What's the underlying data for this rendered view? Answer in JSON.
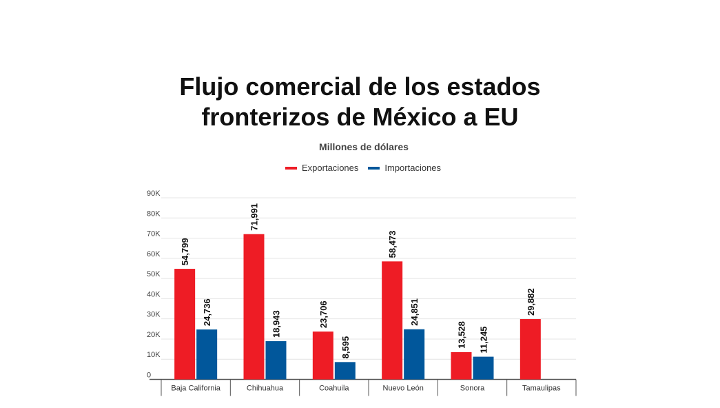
{
  "chart_data": {
    "type": "bar",
    "title": "Flujo comercial de los estados fronterizos de México a EU",
    "title_lines": [
      "Flujo comercial de los estados",
      "fronterizos de México a EU"
    ],
    "subtitle": "Millones de dólares",
    "categories": [
      "Baja California",
      "Chihuahua",
      "Coahuila",
      "Nuevo León",
      "Sonora",
      "Tamaulipas"
    ],
    "series": [
      {
        "name": "Exportaciones",
        "color": "#ee1c25",
        "values": [
          54799,
          71991,
          23706,
          58473,
          13528,
          29882
        ],
        "labels": [
          "54,799",
          "71,991",
          "23,706",
          "58,473",
          "13,528",
          "29,882"
        ]
      },
      {
        "name": "Importaciones",
        "color": "#01579b",
        "values": [
          24736,
          18943,
          8595,
          24851,
          11245,
          null
        ],
        "labels": [
          "24,736",
          "18,943",
          "8,595",
          "24,851",
          "11,245",
          null
        ]
      }
    ],
    "ylim": [
      0,
      90000
    ],
    "yticks": [
      0,
      10000,
      20000,
      30000,
      40000,
      50000,
      60000,
      70000,
      80000,
      90000
    ],
    "ytick_labels": [
      "0",
      "10K",
      "20K",
      "30K",
      "40K",
      "50K",
      "60K",
      "70K",
      "80K",
      "90K"
    ],
    "grid": true,
    "legend_position": "top-center"
  }
}
